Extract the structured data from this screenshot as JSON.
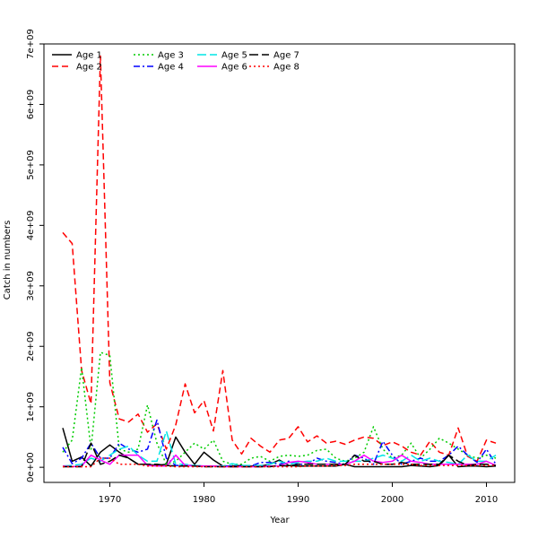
{
  "chart_data": {
    "type": "line",
    "xlabel": "Year",
    "ylabel": "Catch in numbers",
    "xlim": [
      1963,
      2013
    ],
    "ylim": [
      -250000000,
      7000000000
    ],
    "x_ticks": [
      {
        "value": 1970,
        "label": "1970"
      },
      {
        "value": 1980,
        "label": "1980"
      },
      {
        "value": 1990,
        "label": "1990"
      },
      {
        "value": 2000,
        "label": "2000"
      },
      {
        "value": 2010,
        "label": "2010"
      }
    ],
    "y_ticks": [
      {
        "value": 0,
        "label": "0e+00"
      },
      {
        "value": 1000000000,
        "label": "1e+09"
      },
      {
        "value": 2000000000,
        "label": "2e+09"
      },
      {
        "value": 3000000000,
        "label": "3e+09"
      },
      {
        "value": 4000000000,
        "label": "4e+09"
      },
      {
        "value": 5000000000,
        "label": "5e+09"
      },
      {
        "value": 6000000000,
        "label": "6e+09"
      },
      {
        "value": 7000000000,
        "label": "7e+09"
      }
    ],
    "grid": false,
    "legend_position": "top-left",
    "x": [
      1965,
      1966,
      1967,
      1968,
      1969,
      1970,
      1971,
      1972,
      1973,
      1974,
      1975,
      1976,
      1977,
      1978,
      1979,
      1980,
      1981,
      1982,
      1983,
      1984,
      1985,
      1986,
      1987,
      1988,
      1989,
      1990,
      1991,
      1992,
      1993,
      1994,
      1995,
      1996,
      1997,
      1998,
      1999,
      2000,
      2001,
      2002,
      2003,
      2004,
      2005,
      2006,
      2007,
      2008,
      2009,
      2010,
      2011
    ],
    "series": [
      {
        "name": "Age 1",
        "color": "#000000",
        "dash": "solid",
        "values": [
          650000000,
          100000000,
          170000000,
          20000000,
          250000000,
          370000000,
          250000000,
          150000000,
          50000000,
          50000000,
          30000000,
          50000000,
          500000000,
          250000000,
          50000000,
          250000000,
          120000000,
          20000000,
          20000000,
          30000000,
          20000000,
          20000000,
          50000000,
          120000000,
          30000000,
          20000000,
          20000000,
          20000000,
          20000000,
          20000000,
          50000000,
          10000000,
          10000000,
          10000000,
          10000000,
          10000000,
          10000000,
          30000000,
          20000000,
          10000000,
          30000000,
          200000000,
          10000000,
          20000000,
          20000000,
          10000000,
          20000000
        ]
      },
      {
        "name": "Age 2",
        "color": "#ff0000",
        "dash": "long",
        "values": [
          3880000000,
          3700000000,
          1600000000,
          1050000000,
          6800000000,
          1400000000,
          800000000,
          750000000,
          880000000,
          580000000,
          720000000,
          300000000,
          700000000,
          1380000000,
          900000000,
          1100000000,
          600000000,
          1600000000,
          450000000,
          220000000,
          480000000,
          350000000,
          250000000,
          450000000,
          480000000,
          670000000,
          420000000,
          520000000,
          400000000,
          430000000,
          380000000,
          450000000,
          500000000,
          480000000,
          360000000,
          420000000,
          350000000,
          250000000,
          200000000,
          430000000,
          250000000,
          200000000,
          650000000,
          180000000,
          100000000,
          450000000,
          400000000
        ]
      },
      {
        "name": "Age 3",
        "color": "#00cc00",
        "dash": "dotted",
        "values": [
          250000000,
          450000000,
          1650000000,
          300000000,
          1900000000,
          1850000000,
          300000000,
          250000000,
          300000000,
          1030000000,
          400000000,
          50000000,
          100000000,
          250000000,
          400000000,
          300000000,
          450000000,
          100000000,
          50000000,
          50000000,
          150000000,
          180000000,
          100000000,
          180000000,
          200000000,
          180000000,
          200000000,
          280000000,
          300000000,
          150000000,
          100000000,
          150000000,
          250000000,
          670000000,
          300000000,
          150000000,
          200000000,
          400000000,
          150000000,
          300000000,
          480000000,
          400000000,
          300000000,
          200000000,
          150000000,
          200000000,
          150000000
        ]
      },
      {
        "name": "Age 4",
        "color": "#0000ff",
        "dash": "dashdot",
        "values": [
          330000000,
          60000000,
          150000000,
          400000000,
          150000000,
          150000000,
          400000000,
          300000000,
          250000000,
          300000000,
          780000000,
          150000000,
          30000000,
          30000000,
          30000000,
          20000000,
          20000000,
          20000000,
          20000000,
          20000000,
          20000000,
          80000000,
          80000000,
          50000000,
          100000000,
          50000000,
          50000000,
          150000000,
          100000000,
          80000000,
          50000000,
          200000000,
          150000000,
          50000000,
          430000000,
          200000000,
          50000000,
          100000000,
          150000000,
          100000000,
          100000000,
          200000000,
          350000000,
          200000000,
          80000000,
          300000000,
          50000000
        ]
      },
      {
        "name": "Age 5",
        "color": "#00e5e5",
        "dash": "longdash",
        "values": [
          20000000,
          30000000,
          50000000,
          150000000,
          100000000,
          200000000,
          300000000,
          350000000,
          200000000,
          100000000,
          100000000,
          600000000,
          50000000,
          50000000,
          30000000,
          20000000,
          20000000,
          20000000,
          60000000,
          30000000,
          30000000,
          30000000,
          50000000,
          100000000,
          50000000,
          80000000,
          100000000,
          100000000,
          150000000,
          100000000,
          100000000,
          100000000,
          100000000,
          150000000,
          200000000,
          150000000,
          100000000,
          200000000,
          100000000,
          150000000,
          100000000,
          80000000,
          50000000,
          200000000,
          100000000,
          100000000,
          200000000
        ]
      },
      {
        "name": "Age 6",
        "color": "#ff00ff",
        "dash": "solid",
        "values": [
          20000000,
          10000000,
          20000000,
          200000000,
          120000000,
          50000000,
          200000000,
          200000000,
          200000000,
          30000000,
          20000000,
          20000000,
          200000000,
          30000000,
          20000000,
          20000000,
          20000000,
          10000000,
          10000000,
          10000000,
          10000000,
          10000000,
          20000000,
          20000000,
          80000000,
          100000000,
          80000000,
          50000000,
          50000000,
          50000000,
          50000000,
          100000000,
          200000000,
          100000000,
          80000000,
          100000000,
          200000000,
          100000000,
          80000000,
          50000000,
          50000000,
          50000000,
          50000000,
          50000000,
          50000000,
          100000000,
          30000000
        ]
      },
      {
        "name": "Age 7",
        "color": "#000000",
        "dash": "longdash",
        "values": [
          10000000,
          10000000,
          10000000,
          400000000,
          50000000,
          100000000,
          200000000,
          150000000,
          50000000,
          50000000,
          50000000,
          30000000,
          20000000,
          20000000,
          20000000,
          10000000,
          10000000,
          10000000,
          10000000,
          10000000,
          10000000,
          10000000,
          10000000,
          30000000,
          20000000,
          50000000,
          50000000,
          50000000,
          50000000,
          50000000,
          50000000,
          200000000,
          100000000,
          100000000,
          50000000,
          50000000,
          80000000,
          50000000,
          50000000,
          50000000,
          50000000,
          200000000,
          100000000,
          30000000,
          50000000,
          50000000,
          30000000
        ]
      },
      {
        "name": "Age 8",
        "color": "#ff0000",
        "dash": "dotted",
        "values": [
          10000000,
          10000000,
          10000000,
          10000000,
          150000000,
          150000000,
          50000000,
          50000000,
          50000000,
          20000000,
          20000000,
          20000000,
          10000000,
          10000000,
          10000000,
          10000000,
          10000000,
          10000000,
          10000000,
          10000000,
          10000000,
          10000000,
          10000000,
          10000000,
          10000000,
          10000000,
          20000000,
          20000000,
          20000000,
          30000000,
          30000000,
          50000000,
          50000000,
          50000000,
          50000000,
          50000000,
          50000000,
          50000000,
          30000000,
          30000000,
          30000000,
          30000000,
          30000000,
          30000000,
          30000000,
          30000000,
          30000000
        ]
      }
    ]
  }
}
